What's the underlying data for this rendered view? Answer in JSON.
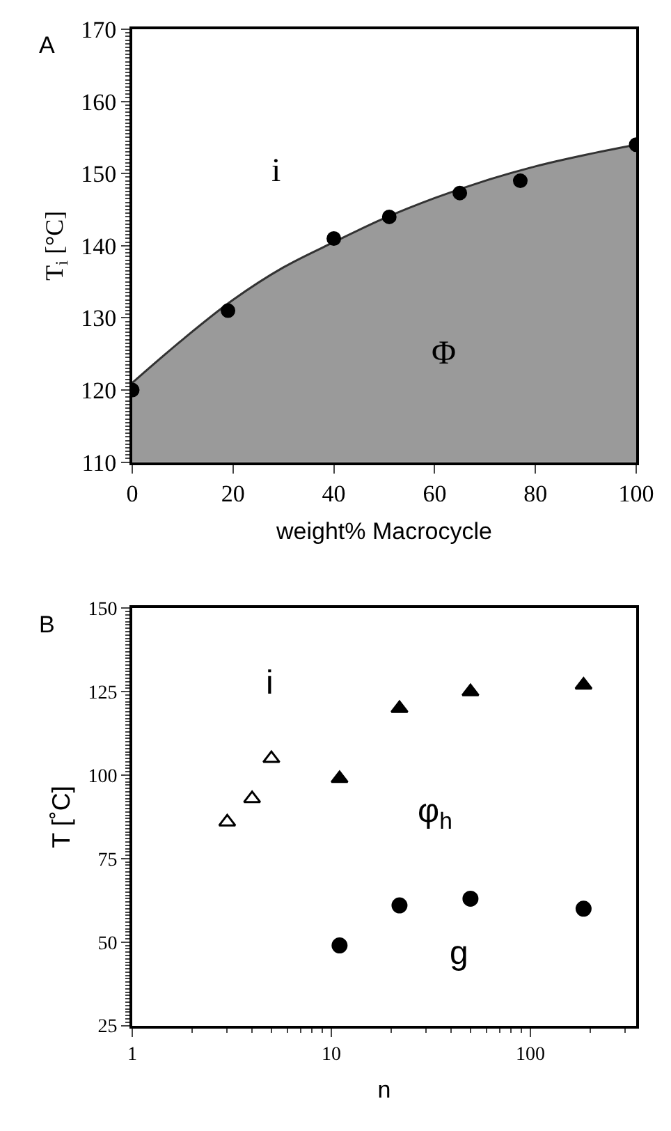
{
  "chart_data": [
    {
      "type": "scatter",
      "title": "A",
      "xlabel": "weight% Macrocycle",
      "ylabel": "T$_{i}$ [°C]",
      "xlim": [
        0,
        100
      ],
      "ylim": [
        110,
        170
      ],
      "xticks": [
        0,
        20,
        40,
        60,
        80,
        100
      ],
      "yticks": [
        110,
        120,
        130,
        140,
        150,
        160,
        170
      ],
      "annotations": [
        "i",
        "Φ"
      ],
      "series": [
        {
          "type": "area",
          "color": "#9a9a9a",
          "x": [
            0,
            10,
            20,
            30,
            40,
            50,
            60,
            70,
            80,
            90,
            100
          ],
          "values": [
            121,
            127,
            132.5,
            137,
            140.5,
            143.8,
            146.6,
            149,
            151,
            152.6,
            154
          ]
        },
        {
          "type": "scatter",
          "marker": "circle",
          "color": "#000000",
          "x": [
            0,
            19,
            40,
            51,
            65,
            77,
            100
          ],
          "values": [
            120,
            131,
            141,
            144,
            147.3,
            149,
            154
          ]
        }
      ]
    },
    {
      "type": "scatter",
      "title": "B",
      "xlabel": "n",
      "ylabel": "T [˚C]",
      "log": "x",
      "xlim": [
        1,
        340
      ],
      "ylim": [
        25,
        150
      ],
      "xticks": [
        1,
        10,
        100
      ],
      "yticks": [
        25,
        50,
        75,
        100,
        125,
        150
      ],
      "annotations": [
        "i",
        "φ$_{h}$",
        "g"
      ],
      "series": [
        {
          "marker": "triangle",
          "color": "#ffffff",
          "x": [
            3,
            4,
            5
          ],
          "values": [
            86,
            93,
            105
          ]
        },
        {
          "marker": "triangle",
          "color": "#000000",
          "x": [
            11,
            22,
            50,
            185
          ],
          "values": [
            99,
            120,
            125,
            127
          ]
        },
        {
          "marker": "circle",
          "color": "#000000",
          "x": [
            11,
            22,
            50,
            185
          ],
          "values": [
            49,
            61,
            63,
            60
          ]
        }
      ]
    }
  ]
}
